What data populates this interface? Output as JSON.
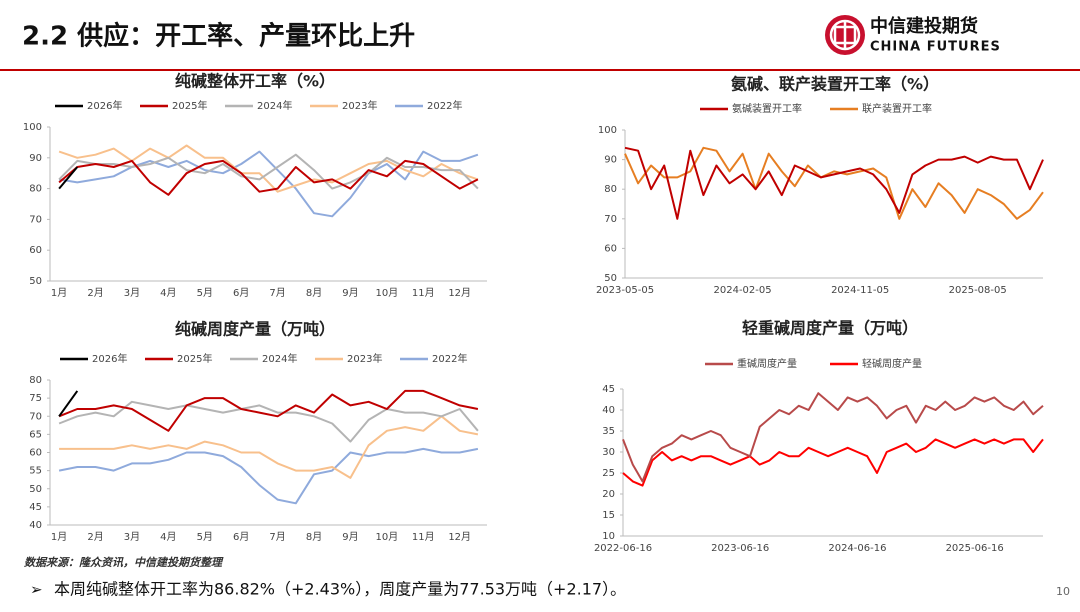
{
  "header": {
    "title": "2.2 供应：开工率、产量环比上升",
    "logo_cn": "中信建投期货",
    "logo_en": "CHINA FUTURES"
  },
  "source": "数据来源：隆众资讯，中信建投期货整理",
  "summary": "本周纯碱整体开工率为86.82%（+2.43%），周度产量为77.53万吨（+2.17）。",
  "page_number": "10",
  "chart_data": [
    {
      "type": "line",
      "title": "纯碱整体开工率（%）",
      "legend": "top",
      "categories": [
        "1月",
        null,
        "2月",
        null,
        "3月",
        null,
        "4月",
        null,
        "5月",
        null,
        "6月",
        null,
        "7月",
        null,
        "8月",
        null,
        "9月",
        null,
        "10月",
        null,
        "11月",
        null,
        "12月",
        null
      ],
      "ylim": [
        50,
        100
      ],
      "yticks": [
        50,
        60,
        70,
        80,
        90,
        100
      ],
      "series": [
        {
          "name": "2026年",
          "color": "#000000",
          "values": [
            80,
            87,
            null,
            null,
            null,
            null,
            null,
            null,
            null,
            null,
            null,
            null,
            null,
            null,
            null,
            null,
            null,
            null,
            null,
            null,
            null,
            null,
            null,
            null
          ]
        },
        {
          "name": "2025年",
          "color": "#c00000",
          "values": [
            82,
            87,
            88,
            87,
            89,
            82,
            78,
            85,
            88,
            89,
            85,
            79,
            80,
            87,
            82,
            83,
            80,
            86,
            84,
            89,
            88,
            84,
            80,
            83
          ]
        },
        {
          "name": "2024年",
          "color": "#b4b4b4",
          "values": [
            83,
            89,
            88,
            88,
            87,
            88,
            90,
            86,
            85,
            88,
            84,
            83,
            87,
            91,
            86,
            80,
            82,
            85,
            90,
            87,
            87,
            86,
            86,
            80
          ]
        },
        {
          "name": "2023年",
          "color": "#f8c08c",
          "values": [
            92,
            90,
            91,
            93,
            89,
            93,
            90,
            94,
            90,
            90,
            85,
            85,
            79,
            81,
            83,
            82,
            85,
            88,
            89,
            86,
            84,
            88,
            85,
            83
          ]
        },
        {
          "name": "2022年",
          "color": "#8faadc",
          "values": [
            83,
            82,
            83,
            84,
            87,
            89,
            87,
            89,
            86,
            85,
            88,
            92,
            86,
            80,
            72,
            71,
            77,
            85,
            88,
            83,
            92,
            89,
            89,
            91
          ]
        }
      ]
    },
    {
      "type": "line",
      "title": "氨碱、联产装置开工率（%）",
      "legend": "top",
      "categories": [
        "2023-05-05",
        null,
        null,
        null,
        null,
        null,
        null,
        null,
        null,
        "2024-02-05",
        null,
        null,
        null,
        null,
        null,
        null,
        null,
        null,
        "2024-11-05",
        null,
        null,
        null,
        null,
        null,
        null,
        null,
        null,
        "2025-08-05",
        null,
        null,
        null,
        null,
        null
      ],
      "ylim": [
        50,
        100
      ],
      "yticks": [
        50,
        60,
        70,
        80,
        90,
        100
      ],
      "series": [
        {
          "name": "氨碱装置开工率",
          "color": "#c00000",
          "values": [
            94,
            93,
            80,
            88,
            70,
            93,
            78,
            88,
            82,
            85,
            80,
            86,
            78,
            88,
            86,
            84,
            85,
            86,
            87,
            85,
            80,
            72,
            85,
            88,
            90,
            90,
            91,
            89,
            91,
            90,
            90,
            80,
            90
          ]
        },
        {
          "name": "联产装置开工率",
          "color": "#e67e22",
          "values": [
            92,
            82,
            88,
            84,
            84,
            86,
            94,
            93,
            86,
            92,
            80,
            92,
            86,
            81,
            88,
            84,
            86,
            85,
            86,
            87,
            84,
            70,
            80,
            74,
            82,
            78,
            72,
            80,
            78,
            75,
            70,
            73,
            79
          ]
        }
      ]
    },
    {
      "type": "line",
      "title": "纯碱周度产量（万吨）",
      "legend": "top",
      "categories": [
        "1月",
        null,
        "2月",
        null,
        "3月",
        null,
        "4月",
        null,
        "5月",
        null,
        "6月",
        null,
        "7月",
        null,
        "8月",
        null,
        "9月",
        null,
        "10月",
        null,
        "11月",
        null,
        "12月",
        null
      ],
      "ylim": [
        40,
        80
      ],
      "yticks": [
        40,
        45,
        50,
        55,
        60,
        65,
        70,
        75,
        80
      ],
      "series": [
        {
          "name": "2026年",
          "color": "#000000",
          "values": [
            70,
            77,
            null,
            null,
            null,
            null,
            null,
            null,
            null,
            null,
            null,
            null,
            null,
            null,
            null,
            null,
            null,
            null,
            null,
            null,
            null,
            null,
            null,
            null
          ]
        },
        {
          "name": "2025年",
          "color": "#c00000",
          "values": [
            70,
            72,
            72,
            73,
            72,
            69,
            66,
            73,
            75,
            75,
            72,
            71,
            70,
            73,
            71,
            76,
            73,
            74,
            72,
            77,
            77,
            75,
            73,
            72
          ]
        },
        {
          "name": "2024年",
          "color": "#b4b4b4",
          "values": [
            68,
            70,
            71,
            70,
            74,
            73,
            72,
            73,
            72,
            71,
            72,
            73,
            71,
            71,
            70,
            68,
            63,
            69,
            72,
            71,
            71,
            70,
            72,
            66
          ]
        },
        {
          "name": "2023年",
          "color": "#f8c08c",
          "values": [
            61,
            61,
            61,
            61,
            62,
            61,
            62,
            61,
            63,
            62,
            60,
            60,
            57,
            55,
            55,
            56,
            53,
            62,
            66,
            67,
            66,
            70,
            66,
            65
          ]
        },
        {
          "name": "2022年",
          "color": "#8faadc",
          "values": [
            55,
            56,
            56,
            55,
            57,
            57,
            58,
            60,
            60,
            59,
            56,
            51,
            47,
            46,
            54,
            55,
            60,
            59,
            60,
            60,
            61,
            60,
            60,
            61
          ]
        }
      ]
    },
    {
      "type": "line",
      "title": "轻重碱周度产量（万吨）",
      "legend": "top",
      "categories": [
        "2022-06-16",
        null,
        null,
        null,
        null,
        null,
        null,
        null,
        null,
        null,
        null,
        null,
        "2023-06-16",
        null,
        null,
        null,
        null,
        null,
        null,
        null,
        null,
        null,
        null,
        null,
        "2024-06-16",
        null,
        null,
        null,
        null,
        null,
        null,
        null,
        null,
        null,
        null,
        null,
        "2025-06-16",
        null,
        null,
        null,
        null,
        null,
        null,
        null
      ],
      "ylim": [
        10,
        45
      ],
      "yticks": [
        10,
        15,
        20,
        25,
        30,
        35,
        40,
        45
      ],
      "series": [
        {
          "name": "重碱周度产量",
          "color": "#b84a4a",
          "values": [
            33,
            27,
            23,
            29,
            31,
            32,
            34,
            33,
            34,
            35,
            34,
            31,
            30,
            29,
            36,
            38,
            40,
            39,
            41,
            40,
            44,
            42,
            40,
            43,
            42,
            43,
            41,
            38,
            40,
            41,
            37,
            41,
            40,
            42,
            40,
            41,
            43,
            42,
            43,
            41,
            40,
            42,
            39,
            41
          ]
        },
        {
          "name": "轻碱周度产量",
          "color": "#ff0000",
          "values": [
            25,
            23,
            22,
            28,
            30,
            28,
            29,
            28,
            29,
            29,
            28,
            27,
            28,
            29,
            27,
            28,
            30,
            29,
            29,
            31,
            30,
            29,
            30,
            31,
            30,
            29,
            25,
            30,
            31,
            32,
            30,
            31,
            33,
            32,
            31,
            32,
            33,
            32,
            33,
            32,
            33,
            33,
            30,
            33
          ]
        }
      ]
    }
  ]
}
